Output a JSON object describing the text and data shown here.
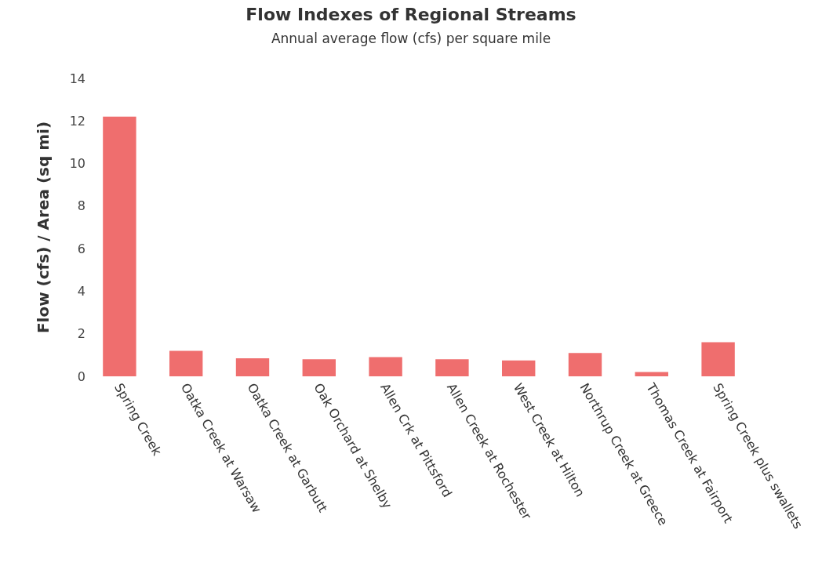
{
  "chart_data": {
    "type": "bar",
    "title": "Flow Indexes of Regional Streams",
    "subtitle": "Annual average flow (cfs) per square mile",
    "ylabel": "Flow (cfs) / Area (sq mi)",
    "categories": [
      "Spring Creek",
      "Oatka Creek at Warsaw",
      "Oatka Creek at Garbutt",
      "Oak Orchard at Shelby",
      "Allen Crk at Pittsford",
      "Allen Creek at Rochester",
      "West Creek at Hilton",
      "Northrup Creek at Greece",
      "Thomas Creek at Fairport",
      "Spring Creek plus swallets"
    ],
    "values": [
      12.2,
      1.2,
      0.85,
      0.8,
      0.9,
      0.8,
      0.75,
      1.1,
      0.2,
      1.6
    ],
    "color": "#ef6e6e",
    "ylim": [
      0,
      14
    ],
    "yticks": [
      0,
      2,
      4,
      6,
      8,
      10,
      12,
      14
    ],
    "grid": false
  }
}
